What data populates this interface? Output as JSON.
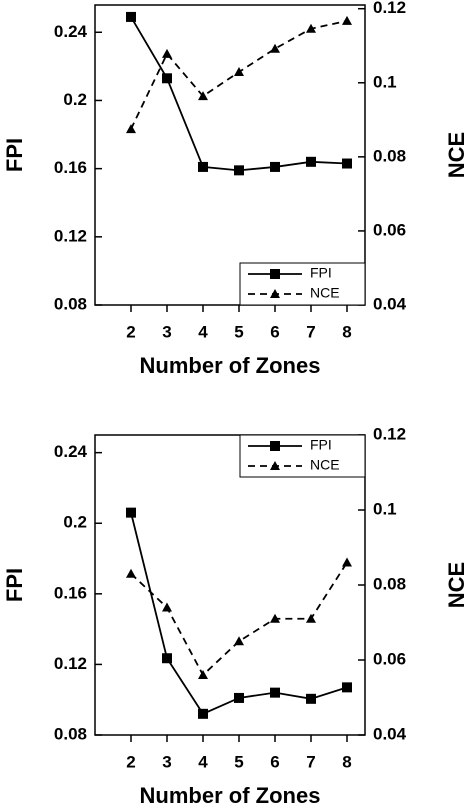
{
  "chart_data": [
    {
      "type": "line",
      "xlabel": "Number of Zones",
      "ylabel": "FPI",
      "y2label": "NCE",
      "x": [
        2,
        3,
        4,
        5,
        6,
        7,
        8
      ],
      "series": [
        {
          "name": "FPI",
          "color": "#000000",
          "linestyle": "solid",
          "marker": "square",
          "values": [
            0.249,
            0.213,
            0.161,
            0.159,
            0.161,
            0.164,
            0.163
          ]
        },
        {
          "name": "NCE",
          "color": "#000000",
          "linestyle": "dashed",
          "marker": "triangle",
          "axis": "y2",
          "values": [
            0.0875,
            0.1078,
            0.0964,
            0.1029,
            0.1092,
            0.1146,
            0.1167
          ]
        }
      ],
      "xlim": [
        1,
        8.5
      ],
      "xticks": [
        2,
        3,
        4,
        5,
        6,
        7,
        8
      ],
      "ylim": [
        0.08,
        0.256
      ],
      "yticks": [
        0.08,
        0.12,
        0.16,
        0.2,
        0.24
      ],
      "y2lim": [
        0.04,
        0.121
      ],
      "y2ticks": [
        0.04,
        0.06,
        0.08,
        0.1,
        0.12
      ],
      "legend": "lower right"
    },
    {
      "type": "line",
      "xlabel": "Number of Zones",
      "ylabel": "FPI",
      "y2label": "NCE",
      "x": [
        2,
        3,
        4,
        5,
        6,
        7,
        8
      ],
      "series": [
        {
          "name": "FPI",
          "color": "#000000",
          "linestyle": "solid",
          "marker": "square",
          "values": [
            0.206,
            0.1235,
            0.092,
            0.101,
            0.104,
            0.1005,
            0.107
          ]
        },
        {
          "name": "NCE",
          "color": "#000000",
          "linestyle": "dashed",
          "marker": "triangle",
          "axis": "y2",
          "values": [
            0.083,
            0.074,
            0.056,
            0.065,
            0.071,
            0.071,
            0.086
          ]
        }
      ],
      "xlim": [
        1,
        8.5
      ],
      "xticks": [
        2,
        3,
        4,
        5,
        6,
        7,
        8
      ],
      "ylim": [
        0.08,
        0.25
      ],
      "yticks": [
        0.08,
        0.12,
        0.16,
        0.2,
        0.24
      ],
      "y2lim": [
        0.04,
        0.12
      ],
      "y2ticks": [
        0.04,
        0.06,
        0.08,
        0.1,
        0.12
      ],
      "legend": "upper right"
    }
  ]
}
